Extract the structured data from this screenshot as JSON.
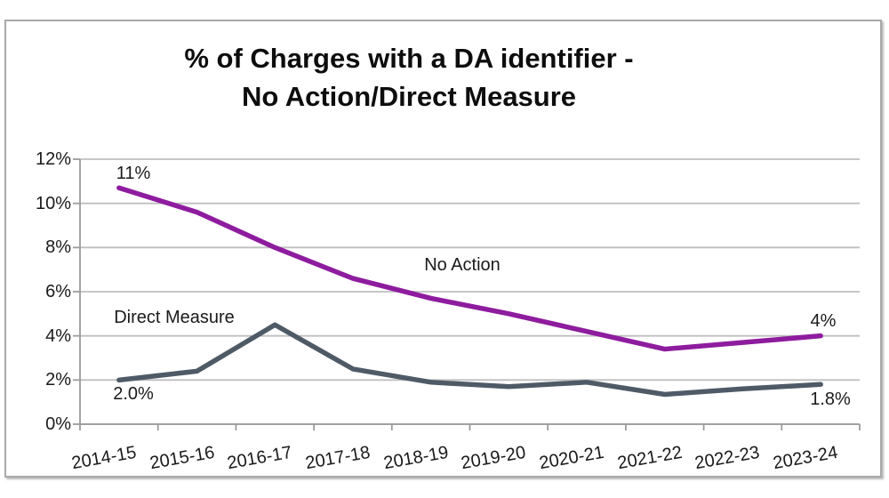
{
  "title": {
    "line1": "% of Charges with a DA identifier -",
    "line2": "No Action/Direct Measure"
  },
  "chart_data": {
    "type": "line",
    "title": "% of Charges with a DA identifier - No Action/Direct Measure",
    "categories": [
      "2014-15",
      "2015-16",
      "2016-17",
      "2017-18",
      "2018-19",
      "2019-20",
      "2020-21",
      "2021-22",
      "2022-23",
      "2023-24"
    ],
    "series": [
      {
        "name": "No Action",
        "color": "#8E1C9E",
        "values": [
          10.7,
          9.6,
          8.0,
          6.6,
          5.7,
          5.0,
          4.2,
          3.4,
          3.7,
          4.0
        ],
        "first_label": "11%",
        "last_label": "4%"
      },
      {
        "name": "Direct Measure",
        "color": "#4E5A66",
        "values": [
          2.0,
          2.4,
          4.5,
          2.5,
          1.9,
          1.7,
          1.9,
          1.35,
          1.6,
          1.8
        ],
        "first_label": "2.0%",
        "last_label": "1.8%"
      }
    ],
    "y_tick_labels": [
      "0%",
      "2%",
      "4%",
      "6%",
      "8%",
      "10%",
      "12%"
    ],
    "ylim": [
      0,
      12
    ],
    "xlabel": "",
    "ylabel": "",
    "grid": true,
    "legend": "inline-labels",
    "colors": {
      "gridline": "#bfbfbf",
      "axis": "#9b9b9b",
      "text": "#1a1a1a"
    }
  }
}
